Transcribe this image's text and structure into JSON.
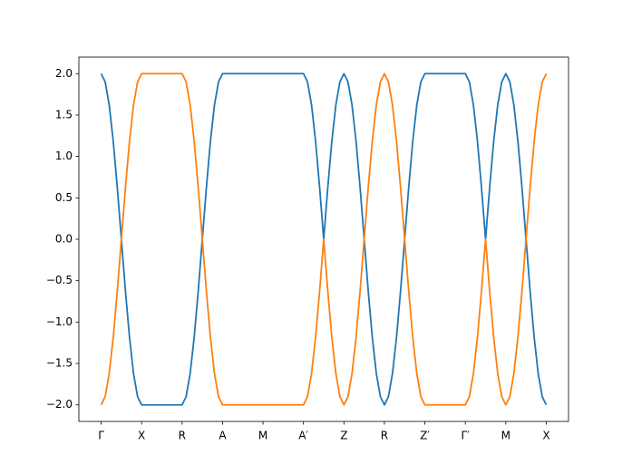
{
  "chart_data": {
    "type": "line",
    "x": [
      0,
      0.1,
      0.2,
      0.3,
      0.4,
      0.5,
      0.6,
      0.7,
      0.8,
      0.9,
      1,
      1.1,
      1.2,
      1.3,
      1.4,
      1.5,
      1.6,
      1.7,
      1.8,
      1.9,
      2,
      2.1,
      2.2,
      2.3,
      2.4,
      2.5,
      2.6,
      2.7,
      2.8,
      2.9,
      3,
      3.1,
      3.2,
      3.3,
      3.4,
      3.5,
      3.6,
      3.7,
      3.8,
      3.9,
      4,
      4.1,
      4.2,
      4.3,
      4.4,
      4.5,
      4.6,
      4.7,
      4.8,
      4.9,
      5,
      5.1,
      5.2,
      5.3,
      5.4,
      5.5,
      5.6,
      5.7,
      5.8,
      5.9,
      6,
      6.1,
      6.2,
      6.3,
      6.4,
      6.5,
      6.6,
      6.7,
      6.8,
      6.9,
      7,
      7.1,
      7.2,
      7.3,
      7.4,
      7.5,
      7.6,
      7.7,
      7.8,
      7.9,
      8,
      8.1,
      8.2,
      8.3,
      8.4,
      8.5,
      8.6,
      8.7,
      8.8,
      8.9,
      9,
      9.1,
      9.2,
      9.3,
      9.4,
      9.5,
      9.6,
      9.7,
      9.8,
      9.9,
      10,
      10.1,
      10.2,
      10.3,
      10.4,
      10.5,
      10.6,
      10.7,
      10.8,
      10.9,
      11
    ],
    "series": [
      {
        "color": "#1f77b4",
        "values": [
          2,
          1.9,
          1.62,
          1.18,
          0.62,
          0,
          -0.62,
          -1.18,
          -1.62,
          -1.9,
          -2,
          -2,
          -2,
          -2,
          -2,
          -2,
          -2,
          -2,
          -2,
          -2,
          -2,
          -1.9,
          -1.62,
          -1.18,
          -0.62,
          0,
          0.62,
          1.18,
          1.62,
          1.9,
          2,
          2,
          2,
          2,
          2,
          2,
          2,
          2,
          2,
          2,
          2,
          2,
          2,
          2,
          2,
          2,
          2,
          2,
          2,
          2,
          2,
          1.9,
          1.62,
          1.18,
          0.62,
          0,
          0.62,
          1.18,
          1.62,
          1.9,
          2,
          1.9,
          1.62,
          1.18,
          0.62,
          0,
          -0.62,
          -1.18,
          -1.62,
          -1.9,
          -2,
          -1.9,
          -1.62,
          -1.18,
          -0.62,
          0,
          0.62,
          1.18,
          1.62,
          1.9,
          2,
          2,
          2,
          2,
          2,
          2,
          2,
          2,
          2,
          2,
          2,
          1.9,
          1.62,
          1.18,
          0.62,
          0,
          0.62,
          1.18,
          1.62,
          1.9,
          2,
          1.9,
          1.62,
          1.18,
          0.62,
          0,
          -0.62,
          -1.18,
          -1.62,
          -1.9,
          -2
        ]
      },
      {
        "color": "#ff7f0e",
        "values": [
          -2,
          -1.9,
          -1.62,
          -1.18,
          -0.62,
          0,
          0.62,
          1.18,
          1.62,
          1.9,
          2,
          2,
          2,
          2,
          2,
          2,
          2,
          2,
          2,
          2,
          2,
          1.9,
          1.62,
          1.18,
          0.62,
          0,
          -0.62,
          -1.18,
          -1.62,
          -1.9,
          -2,
          -2,
          -2,
          -2,
          -2,
          -2,
          -2,
          -2,
          -2,
          -2,
          -2,
          -2,
          -2,
          -2,
          -2,
          -2,
          -2,
          -2,
          -2,
          -2,
          -2,
          -1.9,
          -1.62,
          -1.18,
          -0.62,
          0,
          -0.62,
          -1.18,
          -1.62,
          -1.9,
          -2,
          -1.9,
          -1.62,
          -1.18,
          -0.62,
          0,
          0.62,
          1.18,
          1.62,
          1.9,
          2,
          1.9,
          1.62,
          1.18,
          0.62,
          0,
          -0.62,
          -1.18,
          -1.62,
          -1.9,
          -2,
          -2,
          -2,
          -2,
          -2,
          -2,
          -2,
          -2,
          -2,
          -2,
          -2,
          -1.9,
          -1.62,
          -1.18,
          -0.62,
          0,
          -0.62,
          -1.18,
          -1.62,
          -1.9,
          -2,
          -1.9,
          -1.62,
          -1.18,
          -0.62,
          0,
          0.62,
          1.18,
          1.62,
          1.9,
          2
        ]
      }
    ],
    "xlim": [
      -0.55,
      11.55
    ],
    "ylim": [
      -2.2,
      2.2
    ],
    "xticks": [
      {
        "value": 0,
        "label": "Γ"
      },
      {
        "value": 1,
        "label": "X"
      },
      {
        "value": 2,
        "label": "R"
      },
      {
        "value": 3,
        "label": "A"
      },
      {
        "value": 4,
        "label": "M"
      },
      {
        "value": 5,
        "label": "A′"
      },
      {
        "value": 6,
        "label": "Z"
      },
      {
        "value": 7,
        "label": "R"
      },
      {
        "value": 8,
        "label": "Z′"
      },
      {
        "value": 9,
        "label": "Γ′"
      },
      {
        "value": 10,
        "label": "M"
      },
      {
        "value": 11,
        "label": "X"
      }
    ],
    "yticks": [
      {
        "value": -2,
        "label": "−2.0"
      },
      {
        "value": -1.5,
        "label": "−1.5"
      },
      {
        "value": -1,
        "label": "−1.0"
      },
      {
        "value": -0.5,
        "label": "−0.5"
      },
      {
        "value": 0,
        "label": "0.0"
      },
      {
        "value": 0.5,
        "label": "0.5"
      },
      {
        "value": 1,
        "label": "1.0"
      },
      {
        "value": 1.5,
        "label": "1.5"
      },
      {
        "value": 2,
        "label": "2.0"
      }
    ],
    "grid": false
  }
}
